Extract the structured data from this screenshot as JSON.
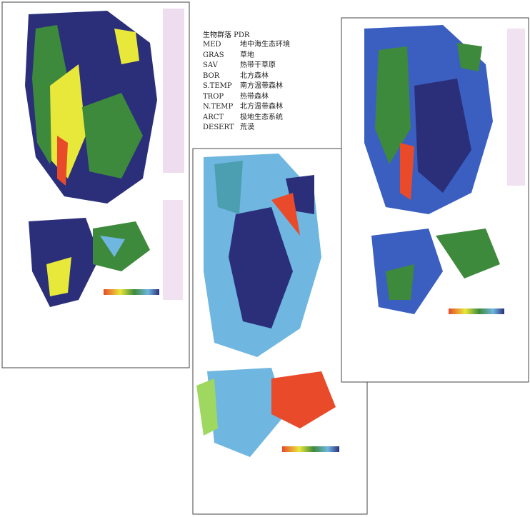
{
  "legend": {
    "title": "生物群落 PDR",
    "rows": [
      {
        "code": "MED",
        "name": "地中海生态环境"
      },
      {
        "code": "GRAS",
        "name": "草地"
      },
      {
        "code": "SAV",
        "name": "热带干草原"
      },
      {
        "code": "BOR",
        "name": "北方森林"
      },
      {
        "code": "S.TEMP",
        "name": "南方温带森林"
      },
      {
        "code": "TROP",
        "name": "热带森林"
      },
      {
        "code": "N.TEMP",
        "name": "北方温带森林"
      },
      {
        "code": "ARCT",
        "name": "极地生态系统"
      },
      {
        "code": "DESERT",
        "name": "荒漠"
      }
    ]
  }
}
